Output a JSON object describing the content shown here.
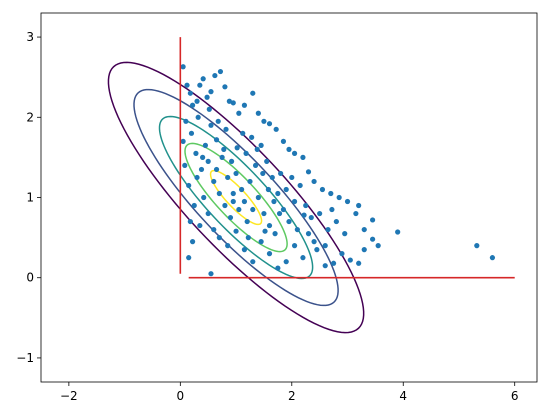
{
  "chart_data": {
    "type": "scatter",
    "title": "",
    "xlabel": "",
    "ylabel": "",
    "xlim": [
      -2.5,
      6.4
    ],
    "ylim": [
      -1.3,
      3.3
    ],
    "grid": false,
    "x_ticks": [
      -2,
      0,
      2,
      4,
      6
    ],
    "y_ticks": [
      -1,
      0,
      1,
      2,
      3
    ],
    "x_tick_labels": [
      "−2",
      "0",
      "2",
      "4",
      "6"
    ],
    "y_tick_labels": [
      "−1",
      "0",
      "1",
      "2",
      "3"
    ],
    "colors": {
      "points": "#1f77b4",
      "constraint_lines": "#d62728",
      "contour_levels": [
        "#440154",
        "#3b528b",
        "#21918c",
        "#5ec962",
        "#fde725"
      ]
    },
    "constraint_lines": [
      {
        "name": "x = 0",
        "points": [
          [
            0,
            0.05
          ],
          [
            0,
            3.0
          ]
        ]
      },
      {
        "name": "y = 0",
        "points": [
          [
            0.15,
            0
          ],
          [
            6.0,
            0
          ]
        ]
      }
    ],
    "contours": {
      "center": [
        1.0,
        1.0
      ],
      "angle_deg": -35,
      "levels": [
        {
          "semi_major": 2.75,
          "semi_minor": 0.72
        },
        {
          "semi_major": 2.2,
          "semi_minor": 0.57
        },
        {
          "semi_major": 1.65,
          "semi_minor": 0.43
        },
        {
          "semi_major": 1.1,
          "semi_minor": 0.29
        },
        {
          "semi_major": 0.55,
          "semi_minor": 0.14
        }
      ]
    },
    "points": [
      [
        0.05,
        2.63
      ],
      [
        0.12,
        2.4
      ],
      [
        0.18,
        2.3
      ],
      [
        0.22,
        2.15
      ],
      [
        0.3,
        2.2
      ],
      [
        0.35,
        2.4
      ],
      [
        0.41,
        2.48
      ],
      [
        0.48,
        2.25
      ],
      [
        0.55,
        2.32
      ],
      [
        0.62,
        2.52
      ],
      [
        0.72,
        2.57
      ],
      [
        0.8,
        2.38
      ],
      [
        0.88,
        2.2
      ],
      [
        0.95,
        2.18
      ],
      [
        1.05,
        2.05
      ],
      [
        1.15,
        2.15
      ],
      [
        1.3,
        2.3
      ],
      [
        1.4,
        2.05
      ],
      [
        1.5,
        1.95
      ],
      [
        1.6,
        1.92
      ],
      [
        1.72,
        1.85
      ],
      [
        1.85,
        1.7
      ],
      [
        1.95,
        1.6
      ],
      [
        2.05,
        1.55
      ],
      [
        2.2,
        1.5
      ],
      [
        2.3,
        1.32
      ],
      [
        2.4,
        1.2
      ],
      [
        2.55,
        1.1
      ],
      [
        2.7,
        1.05
      ],
      [
        2.85,
        1.0
      ],
      [
        3.0,
        0.95
      ],
      [
        3.15,
        0.8
      ],
      [
        3.3,
        0.6
      ],
      [
        3.45,
        0.48
      ],
      [
        3.55,
        0.4
      ],
      [
        3.45,
        0.72
      ],
      [
        3.3,
        0.35
      ],
      [
        3.2,
        0.18
      ],
      [
        3.05,
        0.22
      ],
      [
        2.9,
        0.3
      ],
      [
        2.75,
        0.18
      ],
      [
        2.6,
        0.15
      ],
      [
        2.45,
        0.35
      ],
      [
        2.3,
        0.55
      ],
      [
        2.2,
        0.25
      ],
      [
        2.05,
        0.4
      ],
      [
        1.9,
        0.2
      ],
      [
        1.75,
        0.12
      ],
      [
        1.6,
        0.3
      ],
      [
        1.45,
        0.45
      ],
      [
        1.3,
        0.2
      ],
      [
        1.15,
        0.35
      ],
      [
        1.0,
        0.58
      ],
      [
        0.85,
        0.4
      ],
      [
        0.7,
        0.5
      ],
      [
        0.55,
        0.05
      ],
      [
        0.5,
        0.8
      ],
      [
        0.42,
        1.0
      ],
      [
        0.35,
        0.65
      ],
      [
        0.25,
        0.9
      ],
      [
        0.15,
        1.15
      ],
      [
        0.08,
        1.4
      ],
      [
        0.05,
        1.7
      ],
      [
        0.1,
        1.95
      ],
      [
        0.2,
        1.8
      ],
      [
        0.28,
        1.55
      ],
      [
        0.38,
        1.35
      ],
      [
        0.45,
        1.65
      ],
      [
        0.55,
        1.9
      ],
      [
        0.65,
        1.72
      ],
      [
        0.75,
        1.5
      ],
      [
        0.85,
        1.25
      ],
      [
        0.95,
        1.05
      ],
      [
        1.05,
        0.85
      ],
      [
        1.15,
        0.95
      ],
      [
        1.25,
        1.2
      ],
      [
        1.35,
        1.4
      ],
      [
        1.45,
        1.65
      ],
      [
        1.55,
        1.45
      ],
      [
        1.65,
        1.25
      ],
      [
        1.75,
        1.05
      ],
      [
        1.85,
        0.85
      ],
      [
        1.95,
        0.7
      ],
      [
        2.05,
        0.95
      ],
      [
        2.15,
        1.15
      ],
      [
        2.25,
        0.9
      ],
      [
        2.35,
        0.75
      ],
      [
        2.5,
        0.8
      ],
      [
        2.65,
        0.6
      ],
      [
        2.8,
        0.7
      ],
      [
        2.95,
        0.55
      ],
      [
        0.6,
        1.2
      ],
      [
        0.7,
        1.05
      ],
      [
        0.8,
        0.9
      ],
      [
        0.9,
        0.75
      ],
      [
        1.0,
        1.3
      ],
      [
        1.1,
        1.1
      ],
      [
        1.2,
        0.7
      ],
      [
        1.3,
        0.85
      ],
      [
        1.4,
        1.0
      ],
      [
        1.5,
        0.8
      ],
      [
        1.6,
        0.65
      ],
      [
        1.7,
        0.55
      ],
      [
        1.8,
        1.3
      ],
      [
        1.9,
        1.1
      ],
      [
        2.0,
        1.25
      ],
      [
        0.3,
        1.25
      ],
      [
        0.4,
        1.5
      ],
      [
        0.5,
        1.45
      ],
      [
        0.65,
        1.35
      ],
      [
        0.78,
        1.6
      ],
      [
        0.92,
        1.45
      ],
      [
        1.02,
        1.62
      ],
      [
        1.18,
        1.55
      ],
      [
        1.28,
        1.75
      ],
      [
        1.38,
        1.6
      ],
      [
        1.48,
        1.3
      ],
      [
        1.58,
        1.1
      ],
      [
        1.68,
        0.95
      ],
      [
        1.78,
        0.8
      ],
      [
        2.1,
        0.6
      ],
      [
        2.4,
        0.45
      ],
      [
        2.6,
        0.4
      ],
      [
        0.22,
        0.45
      ],
      [
        0.18,
        0.7
      ],
      [
        0.6,
        0.6
      ],
      [
        0.95,
        0.95
      ],
      [
        1.22,
        0.5
      ],
      [
        1.52,
        0.58
      ],
      [
        2.22,
        0.78
      ],
      [
        2.72,
        0.85
      ],
      [
        0.32,
        2.0
      ],
      [
        0.52,
        2.1
      ],
      [
        0.68,
        1.95
      ],
      [
        0.82,
        1.85
      ],
      [
        1.12,
        1.8
      ],
      [
        0.15,
        0.25
      ],
      [
        3.2,
        0.9
      ],
      [
        3.9,
        0.57
      ],
      [
        5.32,
        0.4
      ],
      [
        5.6,
        0.25
      ]
    ]
  }
}
